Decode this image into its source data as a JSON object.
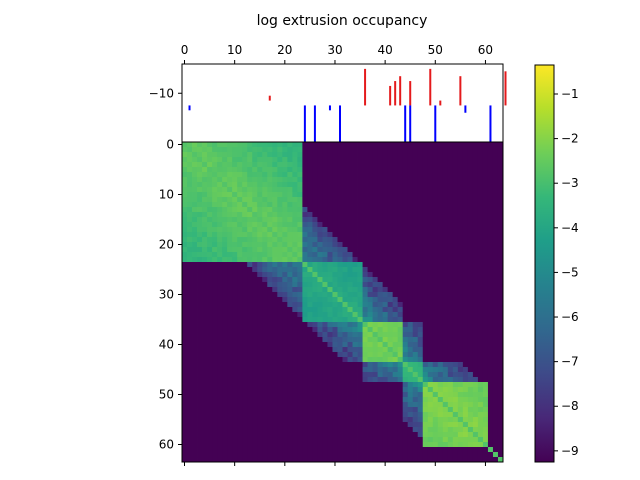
{
  "chart_data": {
    "type": "heatmap",
    "title": "log extrusion occupancy",
    "xlabel": "",
    "ylabel": "",
    "matrix_size": 64,
    "x_range": [
      -0.5,
      63.5
    ],
    "y_range_matrix": [
      63.5,
      -0.5
    ],
    "y_range_tracks": [
      -16,
      0
    ],
    "x_ticks": [
      0,
      10,
      20,
      30,
      40,
      50,
      60
    ],
    "y_ticks_matrix": [
      0,
      10,
      20,
      30,
      40,
      50,
      60
    ],
    "y_ticks_tracks": [
      -10
    ],
    "colorbar": {
      "colormap": "viridis",
      "vmin": -9.25,
      "vmax": -0.35,
      "ticks": [
        -1,
        -2,
        -3,
        -4,
        -5,
        -6,
        -7,
        -8,
        -9
      ]
    },
    "domains": [
      {
        "start": 0,
        "end": 24,
        "base": -2.3
      },
      {
        "start": 24,
        "end": 36,
        "base": -3.6
      },
      {
        "start": 36,
        "end": 44,
        "base": -2.0
      },
      {
        "start": 44,
        "end": 48,
        "base": -3.2
      },
      {
        "start": 48,
        "end": 61,
        "base": -1.8
      }
    ],
    "boundary_tracks": {
      "red": {
        "color": "#e41a1c",
        "bars": [
          {
            "x": 17,
            "y1": -9.5,
            "y2": -8.5
          },
          {
            "x": 36,
            "y1": -7.5,
            "y2": -15
          },
          {
            "x": 41,
            "y1": -7.5,
            "y2": -11.5
          },
          {
            "x": 42,
            "y1": -7.5,
            "y2": -12.5
          },
          {
            "x": 43,
            "y1": -7.5,
            "y2": -13.5
          },
          {
            "x": 45,
            "y1": -7.5,
            "y2": -12.5
          },
          {
            "x": 49,
            "y1": -7.5,
            "y2": -15
          },
          {
            "x": 51,
            "y1": -7.5,
            "y2": -8.5
          },
          {
            "x": 55,
            "y1": -7.5,
            "y2": -13.5
          },
          {
            "x": 64,
            "y1": -7.5,
            "y2": -14.5
          }
        ]
      },
      "blue": {
        "color": "#0000ff",
        "bars": [
          {
            "x": 1,
            "y1": -6.5,
            "y2": -7.5
          },
          {
            "x": 24,
            "y1": 0,
            "y2": -7.5
          },
          {
            "x": 26,
            "y1": 0,
            "y2": -7.5
          },
          {
            "x": 29,
            "y1": -6.5,
            "y2": -7.5
          },
          {
            "x": 31,
            "y1": 0,
            "y2": -7.5
          },
          {
            "x": 44,
            "y1": 0,
            "y2": -7.5
          },
          {
            "x": 45,
            "y1": 0,
            "y2": -7.5
          },
          {
            "x": 50,
            "y1": 0,
            "y2": -7.5
          },
          {
            "x": 56,
            "y1": -6,
            "y2": -7.5
          },
          {
            "x": 61,
            "y1": 0,
            "y2": -7.5
          }
        ]
      }
    }
  }
}
